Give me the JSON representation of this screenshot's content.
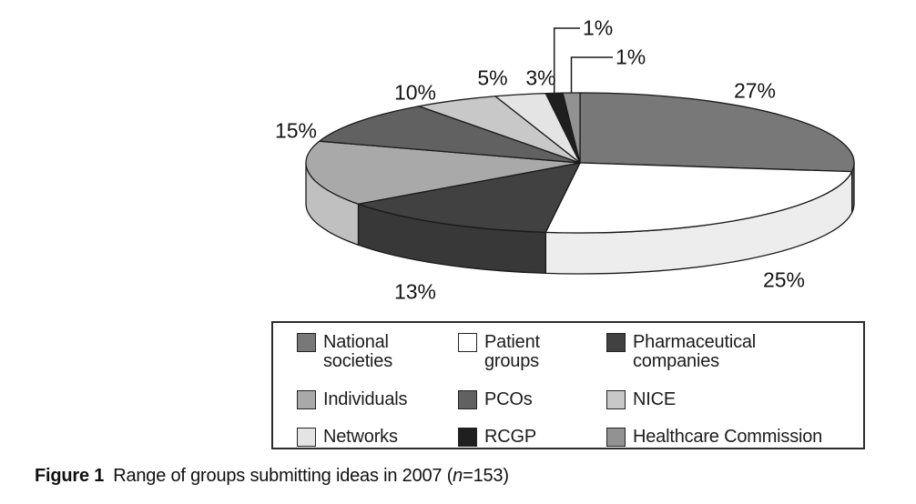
{
  "figure": {
    "caption": {
      "label": "Figure 1",
      "text": "Range of groups submitting ideas in 2007 (",
      "n_symbol": "n",
      "suffix": "=153)"
    }
  },
  "chart_data": {
    "type": "pie",
    "style": "3d",
    "title": "Range of groups submitting ideas in 2007 (n=153)",
    "n_total": 153,
    "unit": "%",
    "start_angle_deg": 0,
    "direction": "clockwise",
    "legend_position": "bottom",
    "outline_color": "#1a1a1a",
    "slices": [
      {
        "label": "National societies",
        "legend_lines": [
          "National",
          "societies"
        ],
        "value": 27,
        "pct_label": "27%",
        "color": "#787878",
        "side_color": "#6b6b6b"
      },
      {
        "label": "Patient groups",
        "legend_lines": [
          "Patient",
          "groups"
        ],
        "value": 25,
        "pct_label": "25%",
        "color": "#ffffff",
        "side_color": "#ededed"
      },
      {
        "label": "Pharmaceutical companies",
        "legend_lines": [
          "Pharmaceutical",
          "companies"
        ],
        "value": 13,
        "pct_label": "13%",
        "color": "#414141",
        "side_color": "#383838"
      },
      {
        "label": "Individuals",
        "legend_lines": [
          "Individuals"
        ],
        "value": 15,
        "pct_label": "15%",
        "color": "#a9a9a9",
        "side_color": "#c0c0c0"
      },
      {
        "label": "PCOs",
        "legend_lines": [
          "PCOs"
        ],
        "value": 10,
        "pct_label": "10%",
        "color": "#616161",
        "side_color": "#545454"
      },
      {
        "label": "NICE",
        "legend_lines": [
          "NICE"
        ],
        "value": 5,
        "pct_label": "5%",
        "color": "#c8c8c8",
        "side_color": "#b4b4b4"
      },
      {
        "label": "Networks",
        "legend_lines": [
          "Networks"
        ],
        "value": 3,
        "pct_label": "3%",
        "color": "#e4e4e4",
        "side_color": "#d2d2d2"
      },
      {
        "label": "RCGP",
        "legend_lines": [
          "RCGP"
        ],
        "value": 1,
        "pct_label": "1%",
        "color": "#1f1f1f",
        "side_color": "#101010"
      },
      {
        "label": "Healthcare Commission",
        "legend_lines": [
          "Healthcare Commission"
        ],
        "value": 1,
        "pct_label": "1%",
        "color": "#929292",
        "side_color": "#828282"
      }
    ]
  }
}
